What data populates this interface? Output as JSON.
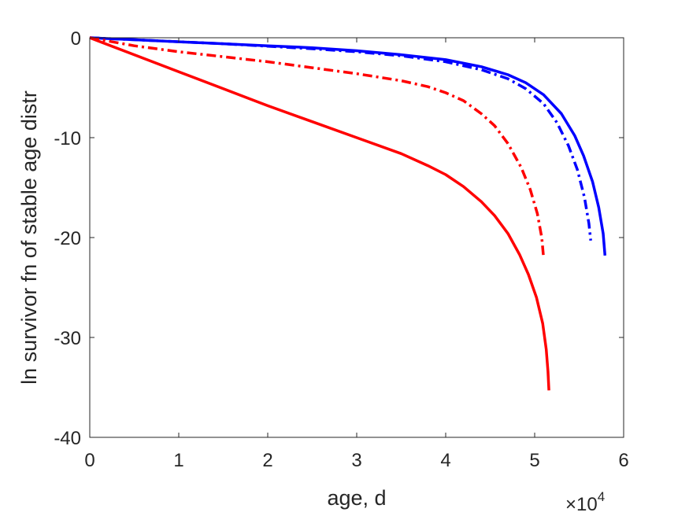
{
  "chart_data": {
    "type": "line",
    "title": "",
    "xlabel": "age, d",
    "ylabel": "ln survivor fn of stable age distr",
    "x_exponent_base": "×10",
    "x_exponent_power": "4",
    "xlim": [
      0,
      60000
    ],
    "ylim": [
      -40,
      0
    ],
    "xticks": [
      0,
      10000,
      20000,
      30000,
      40000,
      50000,
      60000
    ],
    "xtick_labels": [
      "0",
      "1",
      "2",
      "3",
      "4",
      "5",
      "6"
    ],
    "yticks": [
      -40,
      -30,
      -20,
      -10,
      0
    ],
    "ytick_labels": [
      "-40",
      "-30",
      "-20",
      "-10",
      "0"
    ],
    "grid": false,
    "legend": "none",
    "series": [
      {
        "color": "#0000ff",
        "style": "solid",
        "x": [
          0,
          5000,
          10000,
          15000,
          20000,
          25000,
          30000,
          35000,
          40000,
          44000,
          47000,
          49000,
          51000,
          53000,
          54500,
          55500,
          56500,
          57200,
          57700,
          57900
        ],
        "y": [
          0,
          -0.2,
          -0.4,
          -0.6,
          -0.8,
          -1.0,
          -1.3,
          -1.7,
          -2.2,
          -2.9,
          -3.7,
          -4.5,
          -5.7,
          -7.6,
          -9.8,
          -11.8,
          -14.4,
          -17.0,
          -19.6,
          -21.8
        ]
      },
      {
        "color": "#0000ff",
        "style": "dashdot",
        "x": [
          0,
          5000,
          10000,
          15000,
          20000,
          25000,
          30000,
          35000,
          40000,
          44000,
          47000,
          49000,
          51000,
          52500,
          53800,
          54800,
          55600,
          56100,
          56300
        ],
        "y": [
          0,
          -0.2,
          -0.4,
          -0.6,
          -0.85,
          -1.1,
          -1.4,
          -1.8,
          -2.4,
          -3.2,
          -4.1,
          -5.1,
          -6.6,
          -8.5,
          -10.8,
          -13.2,
          -16.0,
          -18.6,
          -20.3
        ]
      },
      {
        "color": "#ff0000",
        "style": "dashdot",
        "x": [
          0,
          5000,
          10000,
          15000,
          20000,
          25000,
          30000,
          35000,
          38000,
          40000,
          42000,
          44000,
          45500,
          47000,
          48500,
          49500,
          50300,
          50800,
          51000
        ],
        "y": [
          0,
          -0.8,
          -1.4,
          -1.9,
          -2.4,
          -3.0,
          -3.6,
          -4.3,
          -4.9,
          -5.5,
          -6.3,
          -7.6,
          -8.8,
          -10.6,
          -13.0,
          -15.2,
          -17.6,
          -20.0,
          -22.0
        ]
      },
      {
        "color": "#ff0000",
        "style": "solid",
        "x": [
          0,
          5000,
          10000,
          15000,
          20000,
          25000,
          30000,
          35000,
          38000,
          40000,
          42000,
          44000,
          45500,
          47000,
          48300,
          49300,
          50200,
          50900,
          51300,
          51500,
          51600
        ],
        "y": [
          0,
          -1.7,
          -3.4,
          -5.1,
          -6.8,
          -8.4,
          -10.0,
          -11.6,
          -12.8,
          -13.7,
          -14.9,
          -16.4,
          -17.8,
          -19.6,
          -21.7,
          -23.7,
          -26.0,
          -28.6,
          -31.2,
          -33.4,
          -35.3
        ]
      }
    ]
  }
}
